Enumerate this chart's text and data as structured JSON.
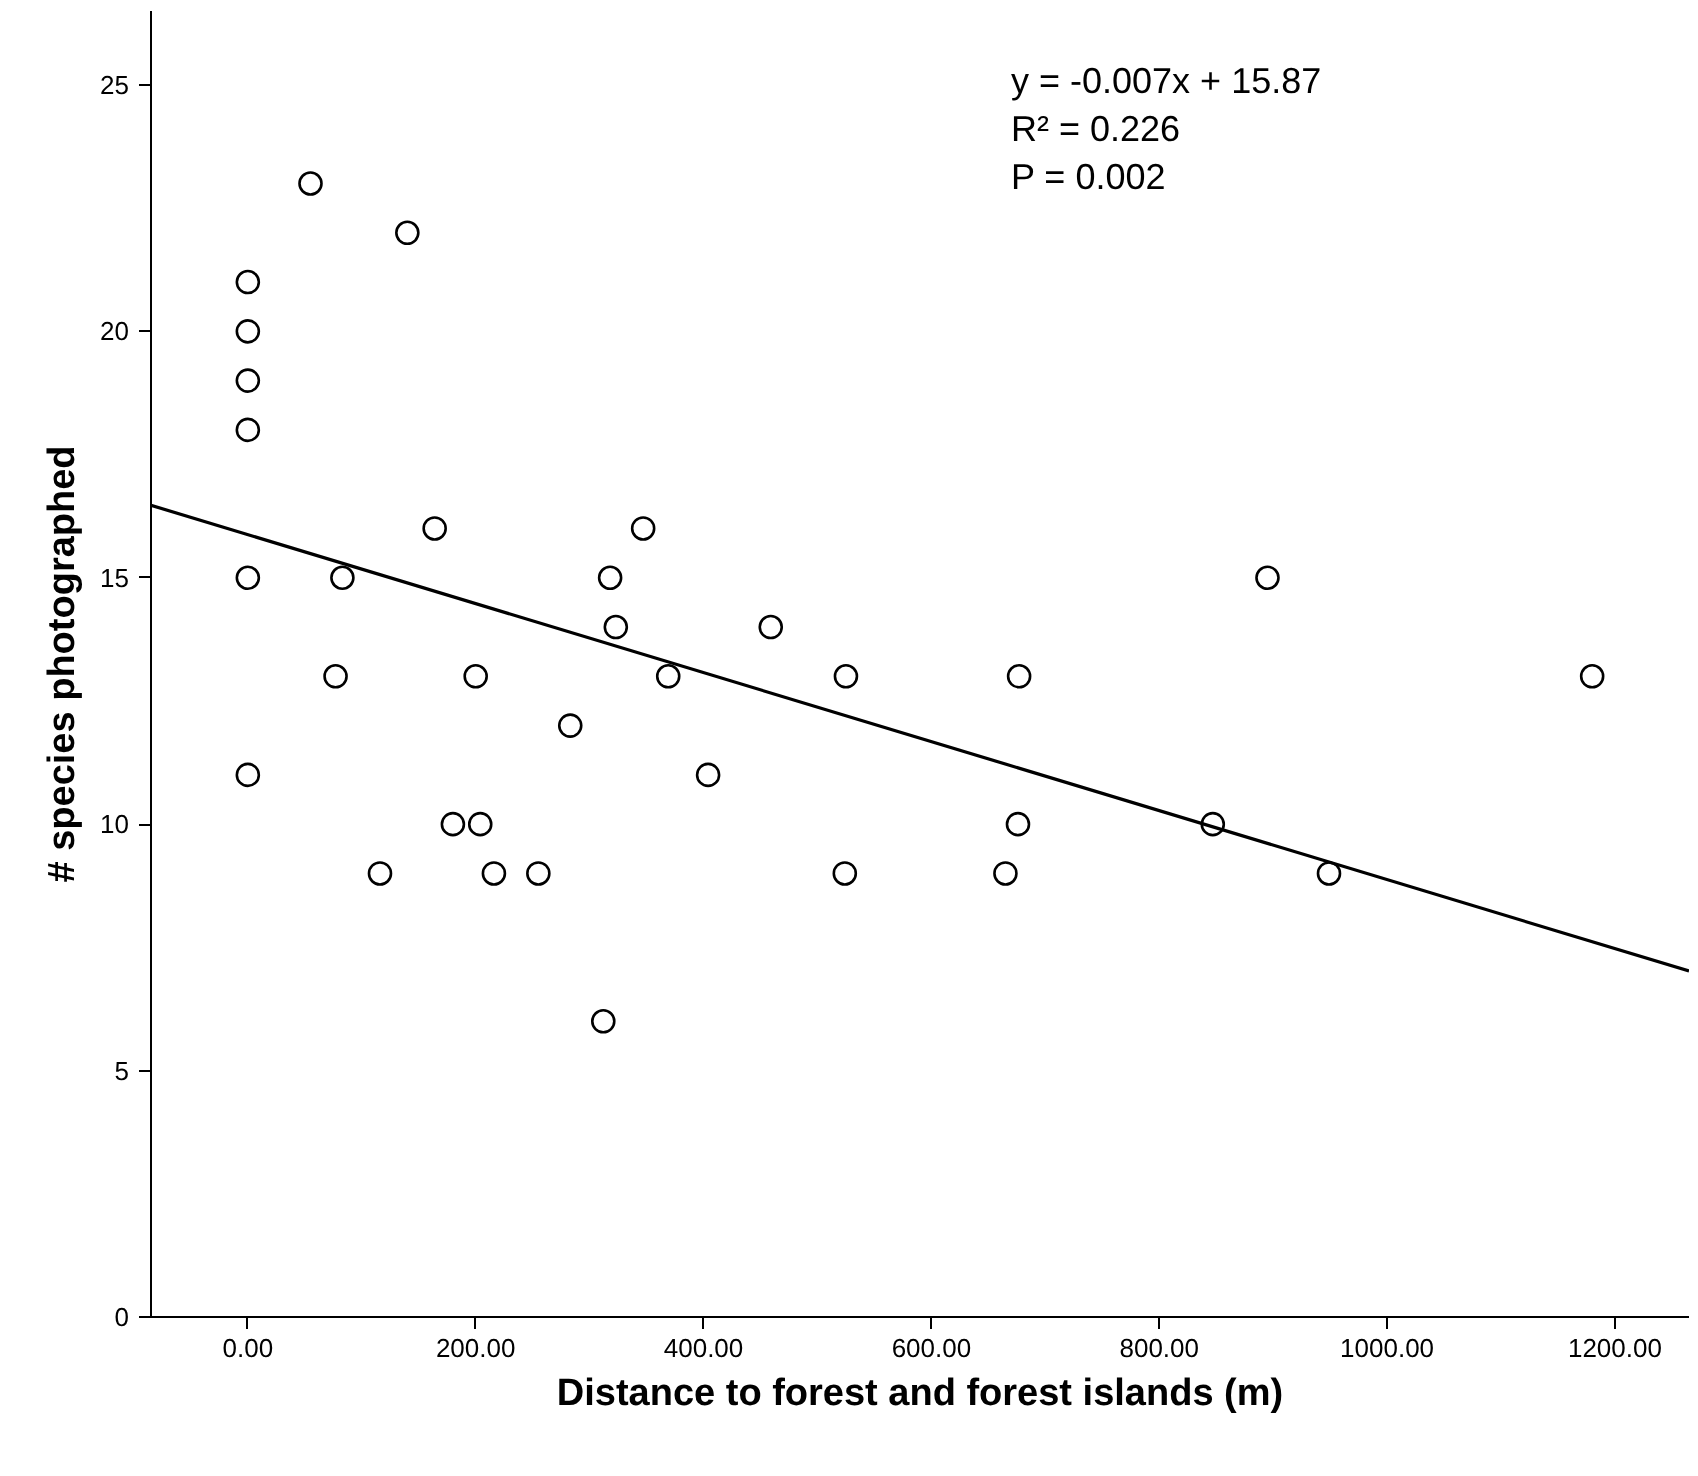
{
  "chart_data": {
    "type": "scatter",
    "xlabel": "Distance to forest and forest islands (m)",
    "ylabel": "# species photographed",
    "annotations": [
      "y = -0.007x + 15.87",
      "R² = 0.226",
      "P = 0.002"
    ],
    "xlim": [
      -85,
      1265
    ],
    "ylim": [
      0,
      26.5
    ],
    "xticks": [
      {
        "value": 0,
        "label": "0.00"
      },
      {
        "value": 200,
        "label": "200.00"
      },
      {
        "value": 400,
        "label": "400.00"
      },
      {
        "value": 600,
        "label": "600.00"
      },
      {
        "value": 800,
        "label": "800.00"
      },
      {
        "value": 1000,
        "label": "1000.00"
      },
      {
        "value": 1200,
        "label": "1200.00"
      }
    ],
    "yticks": [
      0,
      5,
      10,
      15,
      20,
      25
    ],
    "grid": false,
    "series": [
      {
        "marker": "circle",
        "color": "#000000",
        "x": [
          0,
          0,
          0,
          0,
          0,
          0,
          55,
          140,
          164,
          83,
          77,
          200,
          283,
          404,
          180,
          204,
          116,
          216,
          255,
          312,
          318,
          323,
          347,
          369,
          895,
          677,
          1180,
          525,
          459,
          676,
          847,
          949,
          665,
          524
        ],
        "values": [
          21,
          20,
          19,
          18,
          15,
          11,
          23,
          22,
          16,
          15,
          13,
          13,
          12,
          11,
          10,
          10,
          9,
          9,
          9,
          6,
          15,
          14,
          16,
          13,
          15,
          13,
          13,
          13,
          14,
          10,
          10,
          9,
          9,
          9
        ]
      },
      {
        "type": "line",
        "line_style": "solid",
        "color": "#000000",
        "x": [
          -85,
          1265
        ],
        "values": [
          16.47,
          7.02
        ]
      }
    ]
  }
}
